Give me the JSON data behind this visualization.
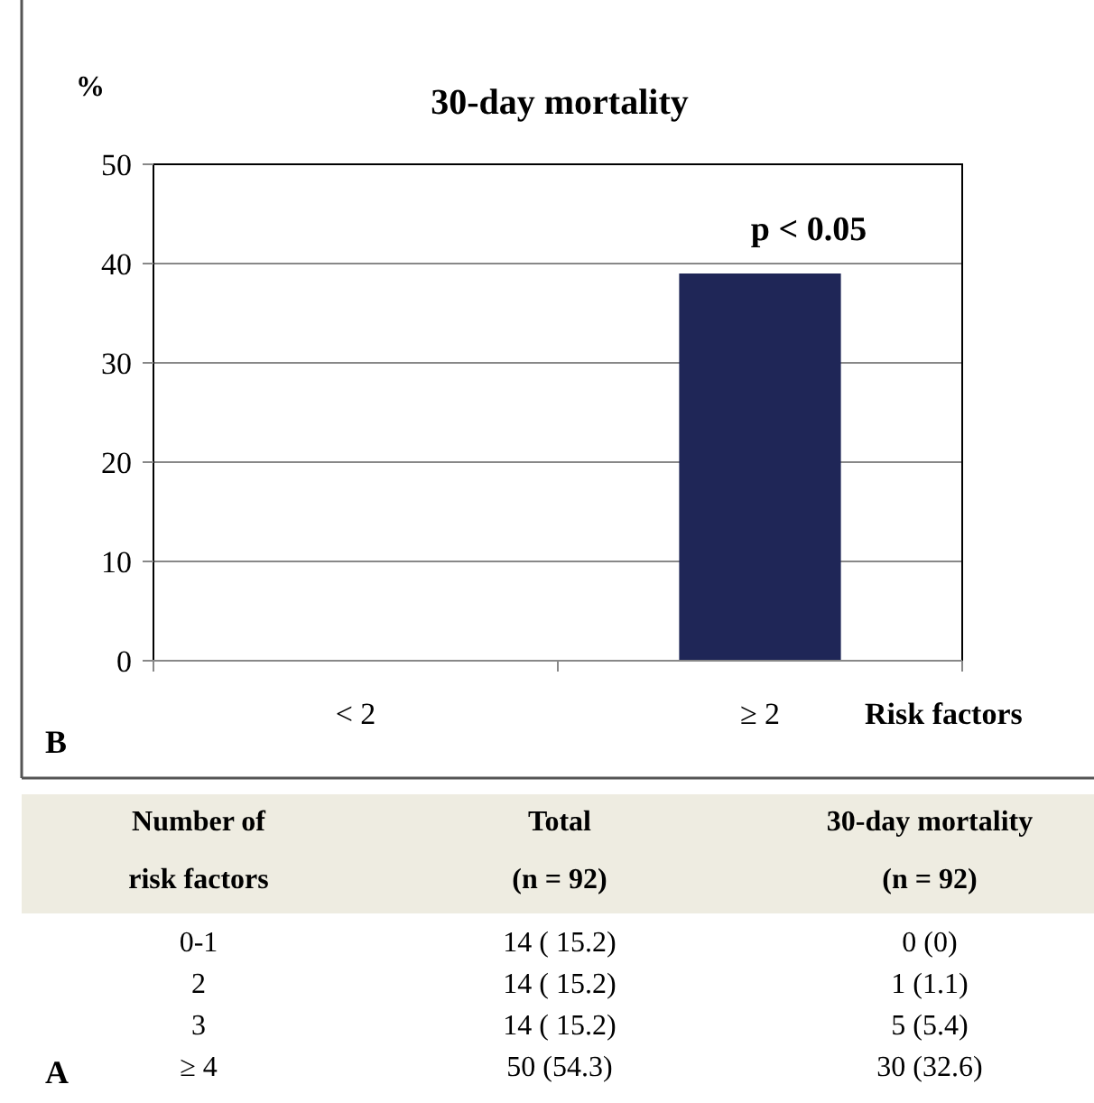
{
  "chart_data": [
    {
      "type": "bar",
      "title": "30-day mortality",
      "ylabel": "%",
      "xlabel": "Risk factors",
      "categories": [
        "< 2",
        "≥ 2"
      ],
      "values": [
        0,
        39
      ],
      "color": "#1f2657",
      "ylim": [
        0,
        50
      ],
      "yticks": [
        0,
        10,
        20,
        30,
        40,
        50
      ],
      "grid": "y",
      "annotations": [
        "p < 0.05",
        "B"
      ]
    },
    {
      "type": "other",
      "annotations": [
        "Number of",
        "Total",
        "30-day mortality",
        "risk factors",
        "(n = 92)",
        "(n = 92)",
        "0-1",
        "14 ( 15.2)",
        "0 (0)",
        "2",
        "14 ( 15.2)",
        "1 (1.1)",
        "3",
        "14 ( 15.2)",
        "5 (5.4)",
        "≥ 4",
        "50 (54.3)",
        "30 (32.6)",
        "A"
      ]
    }
  ]
}
